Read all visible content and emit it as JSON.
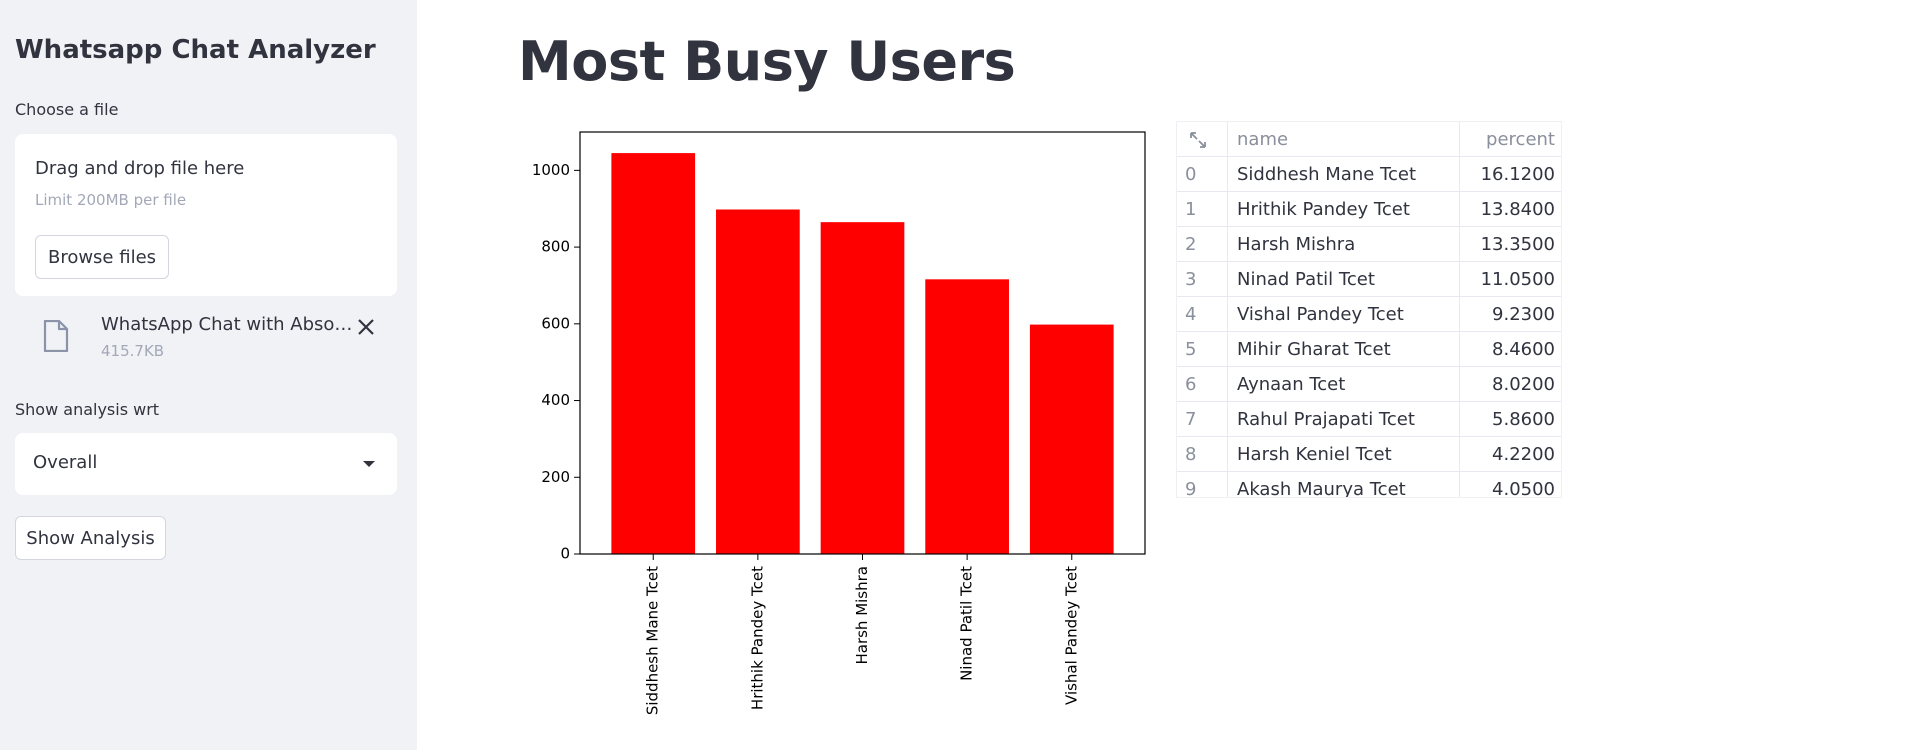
{
  "sidebar": {
    "title": "Whatsapp Chat Analyzer",
    "file_label": "Choose a file",
    "dropzone_title": "Drag and drop file here",
    "dropzone_limit": "Limit 200MB per file",
    "browse_label": "Browse files",
    "file_name": "WhatsApp Chat with Absolute Tcet.txt",
    "file_size": "415.7KB",
    "analysis_label": "Show analysis wrt",
    "selected_user": "Overall",
    "show_button": "Show Analysis"
  },
  "main": {
    "title": "Most Busy Users"
  },
  "chart_data": {
    "type": "bar",
    "categories": [
      "Siddhesh Mane Tcet",
      "Hrithik Pandey Tcet",
      "Harsh Mishra",
      "Ninad Patil Tcet",
      "Vishal Pandey Tcet"
    ],
    "values": [
      1045,
      898,
      865,
      716,
      598
    ],
    "ylim": [
      0,
      1100
    ],
    "yticks": [
      0,
      200,
      400,
      600,
      800,
      1000
    ],
    "color": "#ff0000",
    "grid": false,
    "xlabel_rotation": 90
  },
  "table": {
    "columns": [
      "name",
      "percent"
    ],
    "rows": [
      {
        "idx": "0",
        "name": "Siddhesh Mane Tcet",
        "percent": "16.1200"
      },
      {
        "idx": "1",
        "name": "Hrithik Pandey Tcet",
        "percent": "13.8400"
      },
      {
        "idx": "2",
        "name": "Harsh Mishra",
        "percent": "13.3500"
      },
      {
        "idx": "3",
        "name": "Ninad Patil Tcet",
        "percent": "11.0500"
      },
      {
        "idx": "4",
        "name": "Vishal Pandey Tcet",
        "percent": "9.2300"
      },
      {
        "idx": "5",
        "name": "Mihir Gharat Tcet",
        "percent": "8.4600"
      },
      {
        "idx": "6",
        "name": "Aynaan Tcet",
        "percent": "8.0200"
      },
      {
        "idx": "7",
        "name": "Rahul Prajapati Tcet",
        "percent": "5.8600"
      },
      {
        "idx": "8",
        "name": "Harsh Keniel Tcet",
        "percent": "4.2200"
      },
      {
        "idx": "9",
        "name": "Akash Maurya Tcet",
        "percent": "4.0500"
      }
    ]
  }
}
